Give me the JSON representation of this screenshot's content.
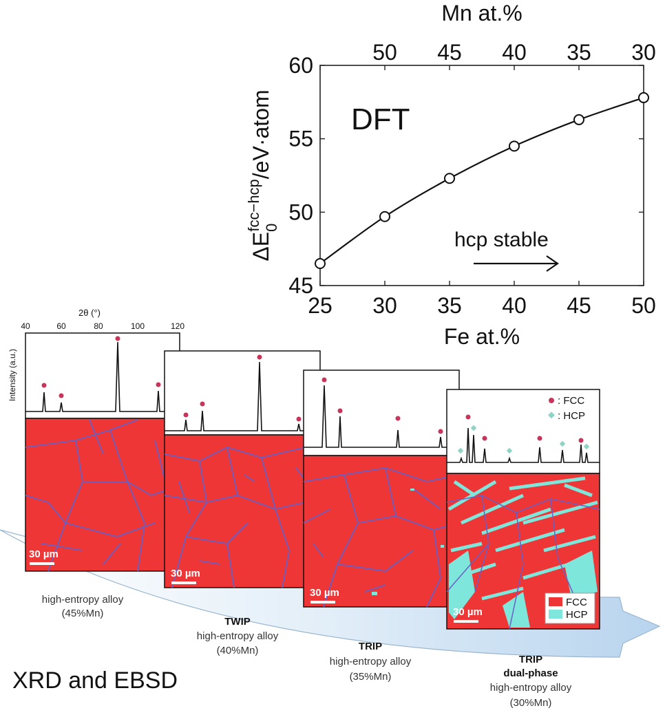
{
  "chart_data": {
    "type": "line",
    "x": [
      25,
      30,
      35,
      40,
      45,
      50
    ],
    "y": [
      46.5,
      49.7,
      52.3,
      54.5,
      56.3,
      57.8
    ],
    "xlabel": "Fe at.%",
    "x2label": "Mn at.%",
    "ylabel_main": "ΔE",
    "ylabel_sup": "fcc−hcp",
    "ylabel_sub": "0",
    "ylabel_tail": "/eV·atom",
    "xlim": [
      25,
      50
    ],
    "ylim": [
      45,
      60
    ],
    "xticks": [
      "25",
      "30",
      "35",
      "40",
      "45",
      "50"
    ],
    "x2ticks": [
      "50",
      "45",
      "40",
      "35",
      "30"
    ],
    "yticks": [
      "45",
      "50",
      "55",
      "60"
    ],
    "annotation_method": "DFT",
    "annotation_arrow": "hcp stable",
    "marker": "open-circle",
    "grid": false
  },
  "xrd": {
    "axis_label": "2θ (°)",
    "axis_ticks": [
      "40",
      "60",
      "80",
      "100",
      "120"
    ],
    "ylabel": "Intensity (a.u.)",
    "fcc_color": "#c8355a",
    "hcp_color": "#8fd3c4",
    "legend_fcc": ": FCC",
    "legend_hcp": ": HCP"
  },
  "ebsd": {
    "scale_bar": "30 µm",
    "legend_fcc": "FCC",
    "legend_hcp": "HCP",
    "fcc_fill": "#ee3636",
    "hcp_fill": "#7fe6dc",
    "boundary_color": "#6a5fc4"
  },
  "panels": [
    {
      "bold1": "",
      "bold2": "",
      "line1": "high-entropy alloy",
      "line2": "(45%Mn)"
    },
    {
      "bold1": "TWIP",
      "bold2": "",
      "line1": "high-entropy alloy",
      "line2": "(40%Mn)"
    },
    {
      "bold1": "TRIP",
      "bold2": "",
      "line1": "high-entropy alloy",
      "line2": "(35%Mn)"
    },
    {
      "bold1": "TRIP",
      "bold2": "dual-phase",
      "line1": "high-entropy alloy",
      "line2": "(30%Mn)"
    }
  ],
  "bottom_label": "XRD and EBSD"
}
